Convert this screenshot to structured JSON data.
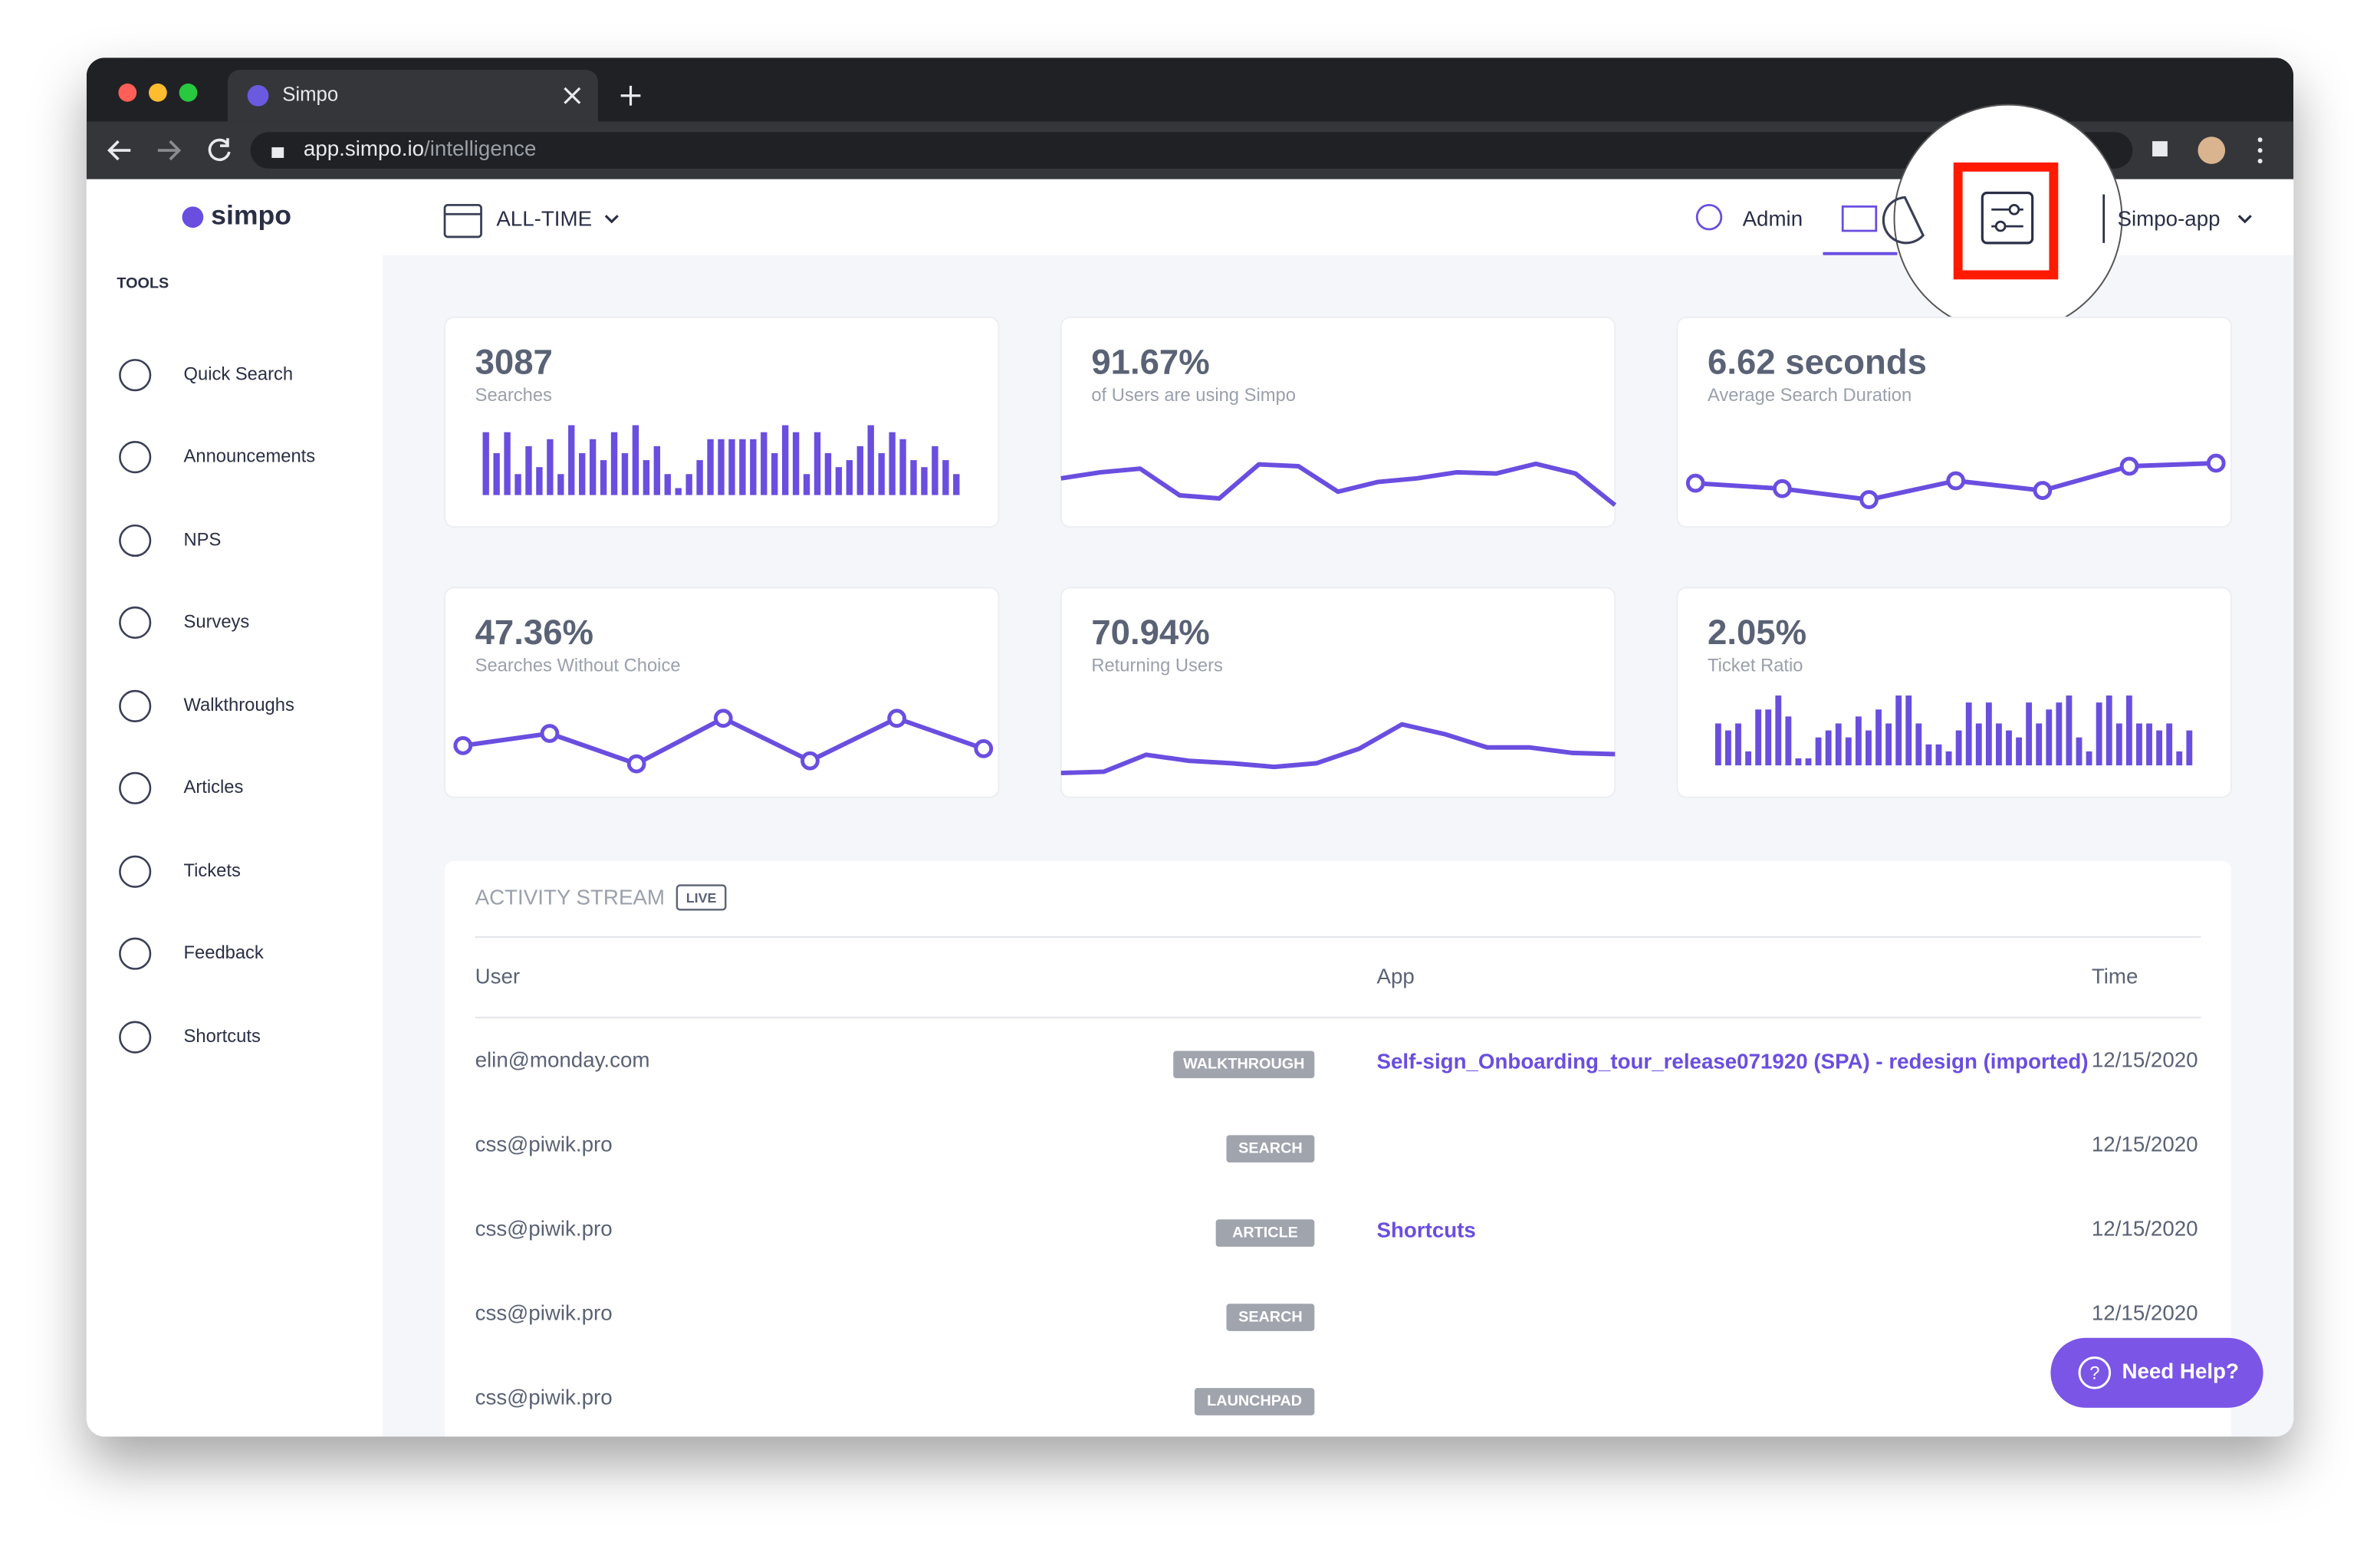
{
  "browser": {
    "tab_title": "Simpo",
    "url_host": "app.simpo.io",
    "url_path": "/intelligence"
  },
  "sidebar": {
    "brand": "simpo",
    "section": "TOOLS",
    "items": [
      "Quick Search",
      "Announcements",
      "NPS",
      "Surveys",
      "Walkthroughs",
      "Articles",
      "Tickets",
      "Feedback",
      "Shortcuts"
    ]
  },
  "header": {
    "date_range": "ALL-TIME",
    "admin": "Admin",
    "app": "Simpo-app"
  },
  "metrics": [
    {
      "value": "3087",
      "label": "Searches",
      "chart": {
        "type": "bar",
        "ylim": [
          0,
          10
        ],
        "values": [
          9,
          6,
          9,
          3,
          7,
          4,
          8,
          3,
          10,
          6,
          8,
          5,
          9,
          6,
          10,
          5,
          7,
          3,
          1,
          3,
          5,
          8,
          8,
          8,
          8,
          8,
          9,
          6,
          10,
          9,
          3,
          9,
          6,
          4,
          5,
          7,
          10,
          6,
          9,
          8,
          5,
          4,
          7,
          5,
          3
        ]
      }
    },
    {
      "value": "91.67%",
      "label": "of Users are using Simpo",
      "chart": {
        "type": "line",
        "ylim": [
          0,
          10
        ],
        "values": [
          5,
          6,
          6.6,
          2.2,
          1.7,
          7.3,
          7,
          2.8,
          4.4,
          5,
          6,
          5.8,
          7.4,
          5.8,
          0.6
        ]
      }
    },
    {
      "value": "6.62 seconds",
      "label": "Average Search Duration",
      "chart": {
        "type": "line",
        "markers": true,
        "ylim": [
          0,
          10
        ],
        "values": [
          4.2,
          3.3,
          1.5,
          4.6,
          3,
          7,
          7.5
        ]
      }
    },
    {
      "value": "47.36%",
      "label": "Searches Without Choice",
      "chart": {
        "type": "line",
        "markers": true,
        "ylim": [
          0,
          10
        ],
        "values": [
          5.5,
          7.5,
          2.5,
          10,
          3,
          10,
          5
        ]
      }
    },
    {
      "value": "70.94%",
      "label": "Returning Users",
      "chart": {
        "type": "line",
        "ylim": [
          0,
          10
        ],
        "values": [
          1,
          1.2,
          4,
          3,
          2.6,
          2,
          2.6,
          5,
          9,
          7.4,
          5.2,
          5.2,
          4.3,
          4.1
        ]
      }
    },
    {
      "value": "2.05%",
      "label": "Ticket Ratio",
      "chart": {
        "type": "bar",
        "ylim": [
          0,
          10
        ],
        "values": [
          6,
          5,
          6,
          2,
          8,
          8,
          10,
          7,
          1,
          1,
          4,
          5,
          6,
          4,
          7,
          5,
          8,
          6,
          10,
          10,
          6,
          3,
          3,
          2,
          5,
          9,
          6,
          9,
          6,
          5,
          4,
          9,
          6,
          8,
          9,
          10,
          4,
          2,
          9,
          10,
          6,
          10,
          6,
          6,
          5,
          6,
          2,
          5
        ]
      }
    }
  ],
  "activity": {
    "title": "ACTIVITY STREAM",
    "live": "LIVE",
    "columns": [
      "User",
      "App",
      "Time"
    ],
    "rows": [
      {
        "user": "elin@monday.com",
        "type": "WALKTHROUGH",
        "app": "Self-sign_Onboarding_tour_release071920 (SPA) - redesign (imported)",
        "time": "12/15/2020"
      },
      {
        "user": "css@piwik.pro",
        "type": "SEARCH",
        "time": "12/15/2020"
      },
      {
        "user": "css@piwik.pro",
        "type": "ARTICLE",
        "app": "Shortcuts",
        "time": "12/15/2020"
      },
      {
        "user": "css@piwik.pro",
        "type": "SEARCH",
        "time": "12/15/2020"
      },
      {
        "user": "css@piwik.pro",
        "type": "LAUNCHPAD"
      }
    ]
  },
  "help": "Need Help?"
}
